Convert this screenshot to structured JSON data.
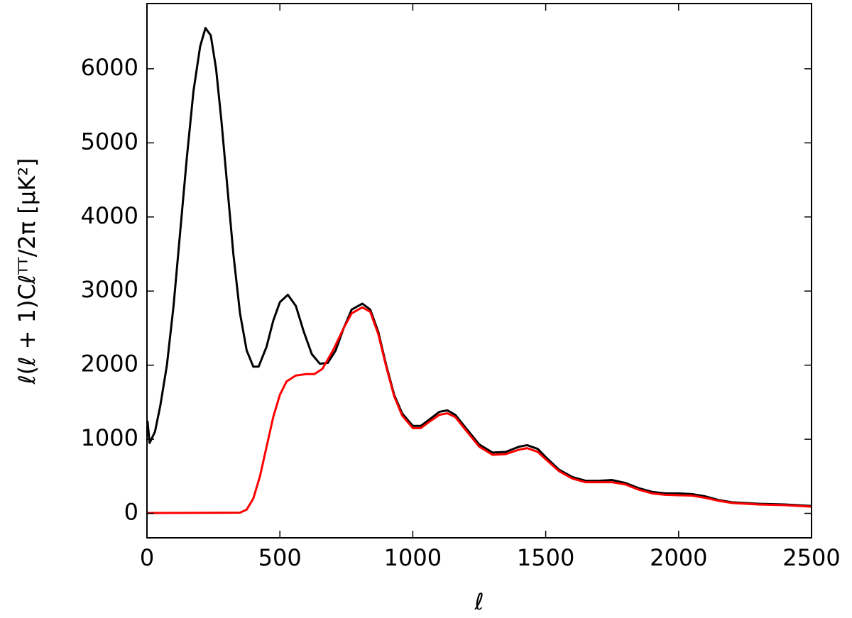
{
  "chart_data": {
    "type": "line",
    "xlabel": "ℓ",
    "ylabel": "ℓ(ℓ + 1)Cℓᵀᵀ/2π [μK²]",
    "xlim": [
      0,
      2500
    ],
    "ylim": [
      -330,
      6880
    ],
    "xticks": [
      0,
      500,
      1000,
      1500,
      2000,
      2500
    ],
    "yticks": [
      0,
      1000,
      2000,
      3000,
      4000,
      5000,
      6000
    ],
    "grid": false,
    "series": [
      {
        "color": "#000000",
        "x": [
          2,
          10,
          30,
          50,
          75,
          100,
          125,
          150,
          175,
          200,
          220,
          240,
          260,
          280,
          300,
          325,
          350,
          375,
          400,
          420,
          450,
          475,
          500,
          530,
          560,
          590,
          620,
          650,
          680,
          710,
          740,
          770,
          810,
          840,
          870,
          900,
          930,
          960,
          1000,
          1030,
          1060,
          1100,
          1130,
          1160,
          1200,
          1250,
          1300,
          1350,
          1400,
          1430,
          1470,
          1500,
          1550,
          1600,
          1650,
          1700,
          1750,
          1800,
          1850,
          1900,
          1950,
          2000,
          2050,
          2100,
          2150,
          2200,
          2300,
          2400,
          2500
        ],
        "values": [
          1250,
          950,
          1100,
          1450,
          2000,
          2800,
          3800,
          4800,
          5700,
          6300,
          6550,
          6450,
          6000,
          5300,
          4500,
          3500,
          2700,
          2200,
          1980,
          1980,
          2250,
          2600,
          2850,
          2950,
          2800,
          2450,
          2150,
          2020,
          2030,
          2200,
          2500,
          2750,
          2830,
          2750,
          2450,
          2000,
          1600,
          1350,
          1180,
          1180,
          1260,
          1370,
          1390,
          1330,
          1150,
          930,
          820,
          830,
          900,
          920,
          870,
          760,
          590,
          490,
          440,
          440,
          450,
          410,
          340,
          290,
          270,
          270,
          260,
          230,
          180,
          150,
          130,
          120,
          100
        ]
      },
      {
        "color": "#ff0000",
        "x": [
          0,
          350,
          375,
          400,
          425,
          450,
          475,
          500,
          525,
          560,
          600,
          630,
          660,
          700,
          740,
          770,
          810,
          840,
          870,
          900,
          930,
          960,
          1000,
          1030,
          1060,
          1100,
          1130,
          1160,
          1200,
          1250,
          1300,
          1350,
          1400,
          1430,
          1470,
          1500,
          1550,
          1600,
          1650,
          1700,
          1750,
          1800,
          1850,
          1900,
          1950,
          2000,
          2050,
          2100,
          2150,
          2200,
          2300,
          2400,
          2500
        ],
        "values": [
          5,
          10,
          50,
          200,
          500,
          900,
          1300,
          1600,
          1780,
          1860,
          1880,
          1880,
          1950,
          2200,
          2500,
          2700,
          2780,
          2720,
          2420,
          1980,
          1580,
          1320,
          1150,
          1150,
          1230,
          1330,
          1350,
          1300,
          1120,
          900,
          790,
          800,
          860,
          880,
          830,
          730,
          570,
          470,
          420,
          420,
          420,
          390,
          320,
          270,
          250,
          245,
          240,
          210,
          170,
          140,
          120,
          110,
          90
        ]
      }
    ]
  }
}
